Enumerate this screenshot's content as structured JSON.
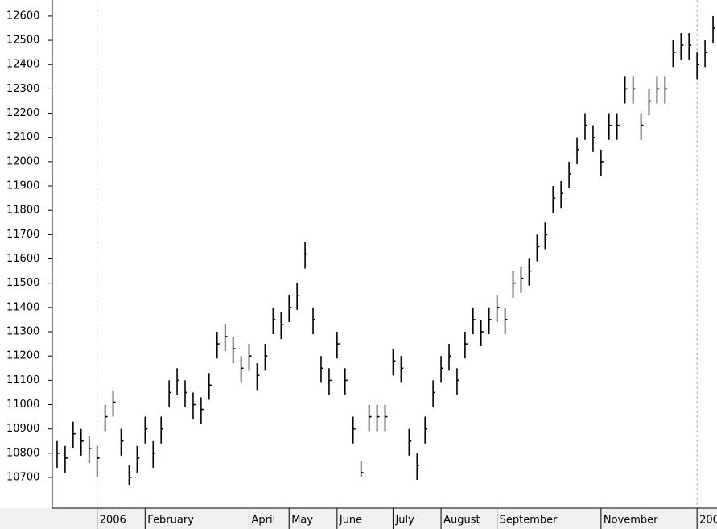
{
  "chart_data": {
    "type": "hlc",
    "ylim": [
      10574,
      12666
    ],
    "yticks": [
      10700,
      10800,
      10900,
      11000,
      11100,
      11200,
      11300,
      11400,
      11500,
      11600,
      11700,
      11800,
      11900,
      12000,
      12100,
      12200,
      12300,
      12400,
      12500,
      12600
    ],
    "color": "#000000",
    "categories": [
      null,
      null,
      null,
      null,
      null,
      "2006",
      null,
      null,
      null,
      null,
      null,
      "February",
      null,
      null,
      null,
      null,
      null,
      null,
      null,
      null,
      null,
      null,
      null,
      null,
      "April",
      null,
      null,
      null,
      null,
      "May",
      null,
      null,
      null,
      null,
      null,
      "June",
      null,
      null,
      null,
      null,
      null,
      null,
      "July",
      null,
      null,
      null,
      null,
      null,
      "August",
      null,
      null,
      null,
      null,
      null,
      null,
      "September",
      null,
      null,
      null,
      null,
      null,
      null,
      null,
      null,
      null,
      null,
      null,
      null,
      "November",
      null,
      null,
      null,
      null,
      null,
      null,
      null,
      null,
      null,
      null,
      null,
      "200",
      null,
      null
    ],
    "high": [
      10850,
      10830,
      10930,
      10900,
      10870,
      10830,
      11000,
      11060,
      10900,
      10750,
      10830,
      10950,
      10850,
      10950,
      11100,
      11150,
      11100,
      11050,
      11030,
      11130,
      11300,
      11330,
      11280,
      11200,
      11250,
      11170,
      11250,
      11400,
      11380,
      11450,
      11500,
      11670,
      11400,
      11200,
      11150,
      11300,
      11150,
      10950,
      10770,
      11000,
      11000,
      11000,
      11230,
      11200,
      10900,
      10800,
      10950,
      11100,
      11200,
      11250,
      11150,
      11300,
      11400,
      11350,
      11400,
      11450,
      11400,
      11550,
      11570,
      11600,
      11700,
      11750,
      11900,
      11920,
      12000,
      12100,
      12200,
      12150,
      12050,
      12200,
      12200,
      12350,
      12350,
      12200,
      12300,
      12350,
      12350,
      12500,
      12530,
      12530,
      12450,
      12500,
      12600
    ],
    "low": [
      10740,
      10720,
      10820,
      10790,
      10760,
      10700,
      10890,
      10950,
      10790,
      10670,
      10720,
      10840,
      10740,
      10840,
      10990,
      11040,
      10990,
      10940,
      10920,
      11020,
      11190,
      11220,
      11170,
      11090,
      11140,
      11060,
      11140,
      11290,
      11270,
      11340,
      11390,
      11560,
      11290,
      11090,
      11040,
      11190,
      11040,
      10840,
      10700,
      10890,
      10890,
      10890,
      11120,
      11090,
      10790,
      10690,
      10840,
      10990,
      11090,
      11140,
      11040,
      11190,
      11290,
      11240,
      11290,
      11340,
      11290,
      11440,
      11460,
      11490,
      11590,
      11640,
      11790,
      11810,
      11890,
      11990,
      12090,
      12040,
      11940,
      12090,
      12090,
      12240,
      12240,
      12090,
      12190,
      12240,
      12240,
      12390,
      12420,
      12420,
      12340,
      12390,
      12490
    ],
    "close": [
      10800,
      10780,
      10880,
      10850,
      10820,
      10780,
      10950,
      11010,
      10850,
      10700,
      10780,
      10900,
      10800,
      10900,
      11050,
      11100,
      11050,
      11000,
      10980,
      11080,
      11250,
      11280,
      11230,
      11150,
      11200,
      11120,
      11200,
      11350,
      11330,
      11400,
      11450,
      11620,
      11350,
      11150,
      11100,
      11250,
      11100,
      10900,
      10720,
      10950,
      10950,
      10950,
      11180,
      11150,
      10850,
      10750,
      10900,
      11050,
      11150,
      11200,
      11100,
      11250,
      11350,
      11300,
      11350,
      11400,
      11350,
      11500,
      11520,
      11550,
      11650,
      11700,
      11850,
      11870,
      11950,
      12050,
      12150,
      12100,
      12000,
      12150,
      12150,
      12300,
      12300,
      12150,
      12250,
      12300,
      12300,
      12450,
      12480,
      12480,
      12400,
      12450,
      12550
    ]
  }
}
